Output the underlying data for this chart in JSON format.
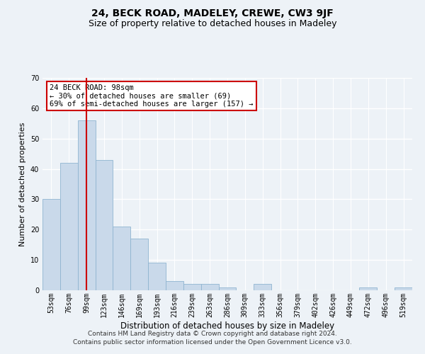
{
  "title": "24, BECK ROAD, MADELEY, CREWE, CW3 9JF",
  "subtitle": "Size of property relative to detached houses in Madeley",
  "xlabel": "Distribution of detached houses by size in Madeley",
  "ylabel": "Number of detached properties",
  "categories": [
    "53sqm",
    "76sqm",
    "99sqm",
    "123sqm",
    "146sqm",
    "169sqm",
    "193sqm",
    "216sqm",
    "239sqm",
    "263sqm",
    "286sqm",
    "309sqm",
    "333sqm",
    "356sqm",
    "379sqm",
    "402sqm",
    "426sqm",
    "449sqm",
    "472sqm",
    "496sqm",
    "519sqm"
  ],
  "values": [
    30,
    42,
    56,
    43,
    21,
    17,
    9,
    3,
    2,
    2,
    1,
    0,
    2,
    0,
    0,
    0,
    0,
    0,
    1,
    0,
    1
  ],
  "bar_color": "#c9d9ea",
  "bar_edgecolor": "#8fb4d0",
  "highlight_index": 2,
  "highlight_line_color": "#cc0000",
  "ylim": [
    0,
    70
  ],
  "yticks": [
    0,
    10,
    20,
    30,
    40,
    50,
    60,
    70
  ],
  "annotation_text": "24 BECK ROAD: 98sqm\n← 30% of detached houses are smaller (69)\n69% of semi-detached houses are larger (157) →",
  "annotation_box_color": "#ffffff",
  "annotation_box_edgecolor": "#cc0000",
  "footer_text": "Contains HM Land Registry data © Crown copyright and database right 2024.\nContains public sector information licensed under the Open Government Licence v3.0.",
  "background_color": "#edf2f7",
  "grid_color": "#ffffff",
  "title_fontsize": 10,
  "subtitle_fontsize": 9,
  "ylabel_fontsize": 8,
  "xlabel_fontsize": 8.5,
  "tick_fontsize": 7,
  "annotation_fontsize": 7.5,
  "footer_fontsize": 6.5
}
